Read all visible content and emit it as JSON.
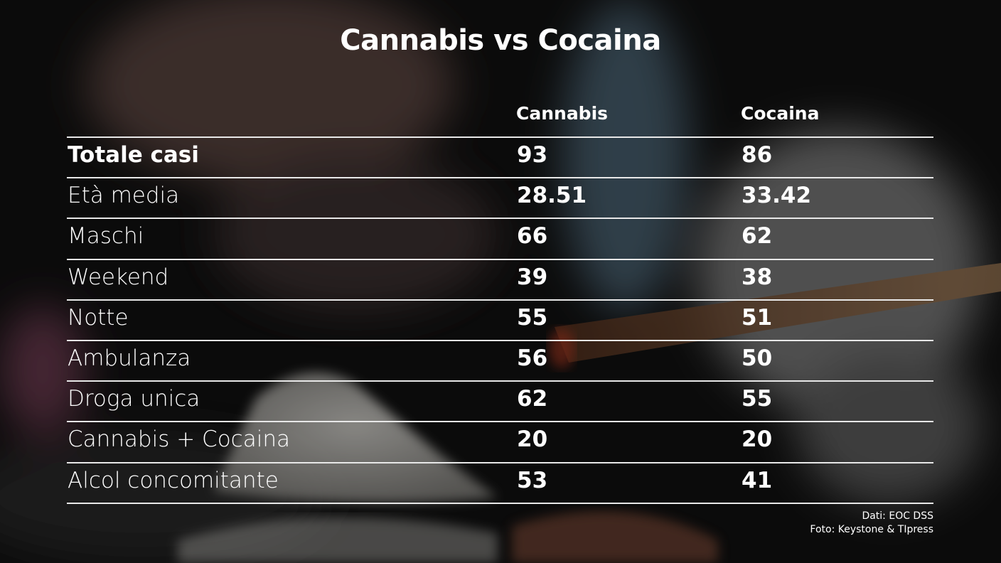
{
  "title": "Cannabis vs Cocaina",
  "table": {
    "columns": [
      "Cannabis",
      "Cocaina"
    ],
    "rows": [
      [
        "Totale casi",
        93,
        86
      ],
      [
        "Età media",
        28.51,
        33.42
      ],
      [
        "Maschi",
        66,
        62
      ],
      [
        "Weekend",
        39,
        38
      ],
      [
        "Notte",
        55,
        51
      ],
      [
        "Ambulanza",
        56,
        50
      ],
      [
        "Droga unica",
        62,
        55
      ],
      [
        "Cannabis + Cocaina",
        20,
        20
      ],
      [
        "Alcol concomitante",
        53,
        41
      ]
    ]
  },
  "source": [
    "Dati: EOC DSS",
    "Foto: Keystone & TIpress"
  ]
}
